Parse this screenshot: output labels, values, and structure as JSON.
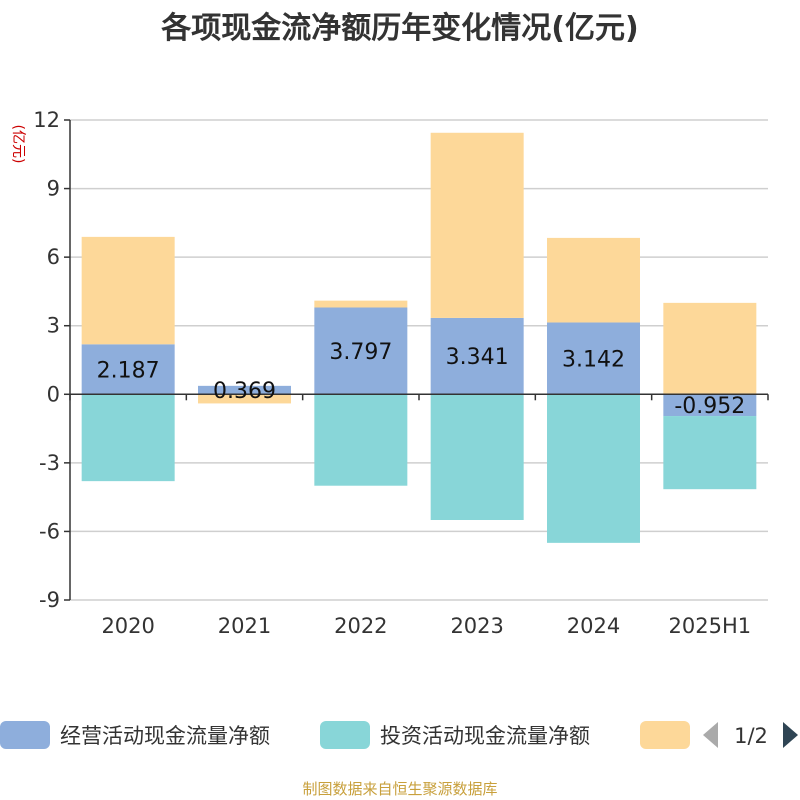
{
  "chart_data": {
    "type": "bar",
    "stacked": true,
    "title": "各项现金流净额历年变化情况(亿元)",
    "ylabel": "(亿元)",
    "xlabel": "",
    "categories": [
      "2020",
      "2021",
      "2022",
      "2023",
      "2024",
      "2025H1"
    ],
    "ylim": [
      -9,
      12
    ],
    "yticks": [
      12,
      9,
      6,
      3,
      0,
      -3,
      -6,
      -9
    ],
    "grid": true,
    "legend_position": "bottom",
    "series": [
      {
        "name": "经营活动现金流量净额",
        "color": "#8eaedc",
        "values": [
          2.187,
          0.369,
          3.797,
          3.341,
          3.142,
          -0.952
        ],
        "labels": [
          "2.187",
          "0.369",
          "3.797",
          "3.341",
          "3.142",
          "-0.952"
        ]
      },
      {
        "name": "投资活动现金流量净额",
        "color": "#88d6d8",
        "values": [
          -3.8,
          0,
          -4.0,
          -5.5,
          -6.5,
          -3.2
        ]
      },
      {
        "name": "",
        "color": "#fdd899",
        "values": [
          4.7,
          -0.4,
          0.3,
          8.1,
          3.7,
          4.0
        ]
      }
    ]
  },
  "legend": {
    "page": "1/2"
  },
  "source": "制图数据来自恒生聚源数据库"
}
